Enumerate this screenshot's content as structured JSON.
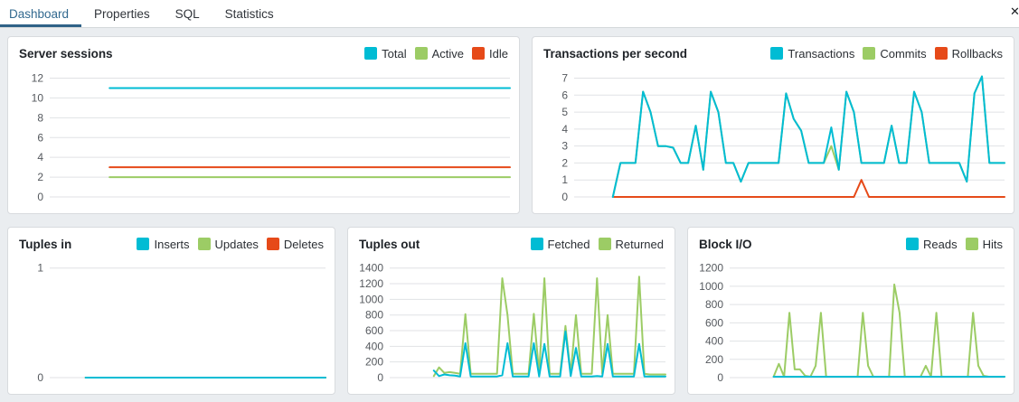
{
  "window": {
    "close_icon": "✕"
  },
  "tabs": [
    {
      "label": "Dashboard",
      "active": true
    },
    {
      "label": "Properties",
      "active": false
    },
    {
      "label": "SQL",
      "active": false
    },
    {
      "label": "Statistics",
      "active": false
    }
  ],
  "colors": {
    "cyan": "#00BCD4",
    "green": "#9CCC65",
    "red": "#E64A19",
    "grid": "#e0e2e5",
    "tick_label": "#55595e",
    "tab_active": "#32698f",
    "tab_underline": "#2f6287"
  },
  "chart_data": [
    {
      "type": "line",
      "title": "Server sessions",
      "legend_position": "top-right",
      "grid": true,
      "yticks": [
        0,
        2,
        4,
        6,
        8,
        10,
        12
      ],
      "ylim": [
        0,
        12
      ],
      "start_frac": 0.13,
      "series": [
        {
          "name": "Total",
          "color": "cyan",
          "values": [
            11,
            11
          ]
        },
        {
          "name": "Active",
          "color": "green",
          "values": [
            2,
            2
          ]
        },
        {
          "name": "Idle",
          "color": "red",
          "values": [
            3,
            3
          ]
        }
      ]
    },
    {
      "type": "line",
      "title": "Transactions per second",
      "legend_position": "top-right",
      "grid": true,
      "yticks": [
        0,
        1,
        2,
        3,
        4,
        5,
        6,
        7
      ],
      "ylim": [
        0,
        7.5
      ],
      "start_frac": 0.09,
      "series": [
        {
          "name": "Transactions",
          "color": "cyan",
          "values": [
            0,
            2,
            2,
            2,
            6.2,
            5,
            3,
            3,
            2.9,
            2,
            2,
            4.2,
            1.6,
            6.2,
            5,
            2,
            2,
            0.9,
            2,
            2,
            2,
            2,
            2,
            6.1,
            4.6,
            3.9,
            2,
            2,
            2,
            4.1,
            1.6,
            6.2,
            5,
            2,
            2,
            2,
            2,
            4.2,
            2,
            2,
            6.2,
            5,
            2,
            2,
            2,
            2,
            2,
            0.9,
            6.1,
            7.1,
            2,
            2,
            2
          ]
        },
        {
          "name": "Commits",
          "color": "green",
          "values": [
            0,
            2,
            2,
            2,
            6.2,
            5,
            3,
            3,
            2.9,
            2,
            2,
            4.2,
            1.6,
            6.2,
            5,
            2,
            2,
            0.9,
            2,
            2,
            2,
            2,
            2,
            6.1,
            4.6,
            3.9,
            2,
            2,
            2,
            3,
            1.6,
            6.2,
            5,
            2,
            2,
            2,
            2,
            4.2,
            2,
            2,
            6.2,
            5,
            2,
            2,
            2,
            2,
            2,
            0.9,
            6.1,
            7.1,
            2,
            2,
            2
          ]
        },
        {
          "name": "Rollbacks",
          "color": "red",
          "values": [
            0,
            0,
            0,
            0,
            0,
            0,
            0,
            0,
            0,
            0,
            0,
            0,
            0,
            0,
            0,
            0,
            0,
            0,
            0,
            0,
            0,
            0,
            0,
            0,
            0,
            0,
            0,
            0,
            0,
            0,
            0,
            0,
            0,
            1,
            0,
            0,
            0,
            0,
            0,
            0,
            0,
            0,
            0,
            0,
            0,
            0,
            0,
            0,
            0,
            0,
            0,
            0,
            0
          ]
        }
      ]
    },
    {
      "type": "line",
      "title": "Tuples in",
      "legend_position": "top-right",
      "grid": true,
      "yticks": [
        0,
        1
      ],
      "ylim": [
        0,
        1
      ],
      "start_frac": 0.13,
      "series": [
        {
          "name": "Inserts",
          "color": "cyan",
          "values": [
            0,
            0
          ]
        },
        {
          "name": "Updates",
          "color": "green",
          "values": [
            0,
            0
          ]
        },
        {
          "name": "Deletes",
          "color": "red",
          "values": [
            0,
            0
          ]
        }
      ]
    },
    {
      "type": "line",
      "title": "Tuples out",
      "legend_position": "top-right",
      "grid": true,
      "yticks": [
        0,
        200,
        400,
        600,
        800,
        1000,
        1200,
        1400
      ],
      "ylim": [
        0,
        1400
      ],
      "start_frac": 0.16,
      "series": [
        {
          "name": "Fetched",
          "color": "cyan",
          "values": [
            90,
            20,
            40,
            30,
            25,
            15,
            440,
            15,
            15,
            15,
            15,
            15,
            15,
            30,
            440,
            15,
            15,
            15,
            15,
            440,
            15,
            430,
            15,
            15,
            15,
            590,
            20,
            380,
            15,
            15,
            15,
            20,
            15,
            430,
            15,
            15,
            15,
            15,
            15,
            430,
            15,
            15,
            15,
            15,
            15
          ]
        },
        {
          "name": "Returned",
          "color": "green",
          "values": [
            20,
            130,
            60,
            70,
            60,
            50,
            810,
            50,
            50,
            50,
            50,
            50,
            50,
            1270,
            800,
            50,
            50,
            50,
            50,
            815,
            50,
            1270,
            50,
            50,
            50,
            660,
            50,
            800,
            50,
            50,
            50,
            1270,
            50,
            800,
            50,
            50,
            50,
            50,
            50,
            1290,
            50,
            40,
            40,
            40,
            40
          ]
        }
      ]
    },
    {
      "type": "line",
      "title": "Block I/O",
      "legend_position": "top-right",
      "grid": true,
      "yticks": [
        0,
        200,
        400,
        600,
        800,
        1000,
        1200
      ],
      "ylim": [
        0,
        1200
      ],
      "start_frac": 0.16,
      "series": [
        {
          "name": "Reads",
          "color": "cyan",
          "values": [
            10,
            10,
            10,
            10,
            10,
            10,
            10,
            10,
            10,
            10,
            10,
            10,
            10,
            10,
            10,
            10,
            10,
            10,
            10,
            10,
            10,
            10,
            10,
            10,
            10,
            10,
            10,
            10,
            10,
            10,
            10,
            10,
            10,
            10,
            10,
            10,
            10,
            10,
            10,
            10,
            10,
            10,
            10,
            10,
            10
          ]
        },
        {
          "name": "Hits",
          "color": "green",
          "values": [
            10,
            150,
            10,
            710,
            90,
            90,
            20,
            10,
            130,
            710,
            10,
            10,
            10,
            10,
            10,
            10,
            10,
            710,
            130,
            10,
            10,
            10,
            10,
            1020,
            710,
            10,
            10,
            10,
            10,
            130,
            10,
            710,
            10,
            10,
            10,
            10,
            10,
            10,
            710,
            130,
            20,
            10,
            10,
            10,
            10
          ]
        }
      ]
    }
  ]
}
